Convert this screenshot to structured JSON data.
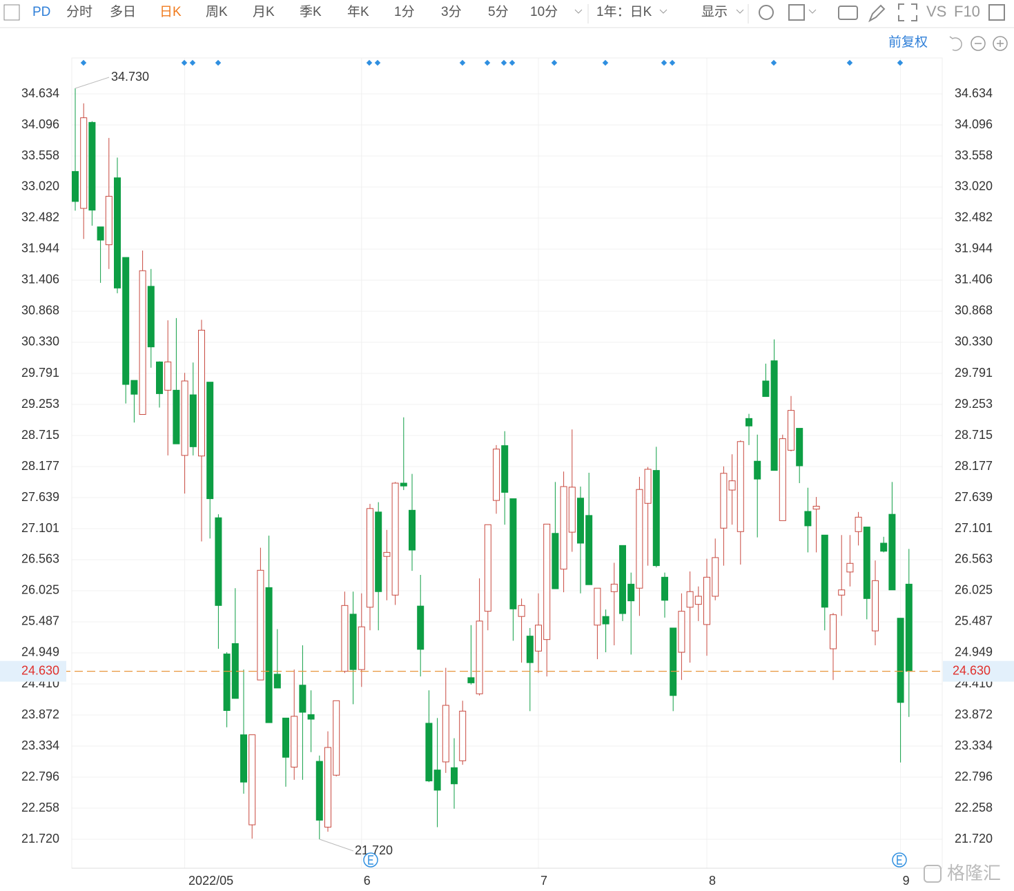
{
  "toolbar": {
    "symbol": "PD",
    "items": [
      "分时",
      "多日",
      "日K",
      "周K",
      "月K",
      "季K",
      "年K",
      "1分",
      "3分",
      "5分",
      "10分"
    ],
    "range": "1年：日K",
    "display": "显示",
    "vs": "VS",
    "f10": "F10",
    "adjust": "前复权",
    "watermark": "格隆汇"
  },
  "chart_data": {
    "type": "candlestick",
    "categories": [
      null,
      null,
      null,
      null,
      null,
      null,
      null,
      null,
      null,
      null,
      null,
      null,
      null,
      "2022/05",
      null,
      null,
      null,
      null,
      null,
      null,
      null,
      null,
      null,
      null,
      null,
      null,
      null,
      null,
      null,
      null,
      null,
      null,
      null,
      null,
      "6",
      null,
      null,
      null,
      null,
      null,
      null,
      null,
      null,
      null,
      null,
      null,
      null,
      null,
      null,
      null,
      null,
      null,
      null,
      null,
      null,
      "7",
      null,
      null,
      null,
      null,
      null,
      null,
      null,
      null,
      null,
      null,
      null,
      null,
      null,
      null,
      null,
      null,
      null,
      null,
      null,
      "8",
      null,
      null,
      null,
      null,
      null,
      null,
      null,
      null,
      null,
      null,
      null,
      null,
      null,
      null,
      null,
      null,
      null,
      null,
      null,
      null,
      null,
      null,
      "9",
      null
    ],
    "open": [
      33.29,
      32.65,
      34.14,
      32.33,
      32.02,
      33.18,
      31.8,
      29.67,
      29.08,
      31.3,
      29.99,
      29.5,
      29.5,
      28.37,
      29.42,
      28.36,
      29.64,
      27.29,
      24.93,
      25.11,
      23.53,
      21.97,
      24.48,
      26.08,
      24.58,
      23.82,
      22.97,
      24.39,
      23.88,
      23.07,
      21.93,
      22.83,
      24.63,
      25.62,
      24.66,
      25.74,
      27.39,
      26.62,
      25.95,
      27.89,
      27.42,
      25.76,
      23.73,
      22.92,
      23.06,
      22.96,
      23.08,
      24.52,
      24.24,
      25.67,
      27.59,
      28.54,
      27.62,
      25.58,
      25.24,
      24.98,
      25.18,
      27.02,
      26.4,
      27.04,
      27.63,
      27.33,
      25.43,
      25.58,
      26.01,
      26.81,
      26.14,
      26.07,
      27.54,
      28.11,
      26.26,
      25.38,
      24.96,
      25.74,
      25.79,
      25.44,
      25.93,
      27.11,
      27.77,
      27.05,
      29.01,
      28.27,
      29.66,
      30.01,
      27.24,
      28.46,
      28.84,
      27.4,
      27.44,
      26.99,
      25.02,
      25.95,
      26.35,
      27.05,
      27.13,
      25.33,
      26.85,
      27.35,
      25.55,
      26.14
    ],
    "high": [
      34.73,
      34.47,
      34.16,
      32.33,
      33.87,
      33.53,
      31.8,
      29.67,
      31.92,
      31.6,
      30.0,
      30.71,
      30.75,
      29.8,
      29.98,
      30.72,
      29.64,
      27.35,
      24.96,
      26.07,
      24.66,
      23.53,
      26.77,
      26.98,
      25.36,
      23.82,
      24.66,
      25.08,
      24.3,
      23.17,
      23.59,
      24.12,
      26.01,
      26.01,
      25.98,
      27.53,
      27.56,
      27.08,
      27.91,
      29.03,
      28.05,
      26.3,
      24.3,
      23.82,
      24.69,
      23.47,
      24.12,
      25.43,
      26.24,
      27.17,
      28.55,
      28.79,
      27.62,
      25.89,
      25.38,
      25.98,
      27.18,
      27.91,
      28.09,
      28.82,
      27.83,
      28.07,
      26.07,
      25.7,
      26.51,
      26.81,
      26.34,
      28.0,
      28.17,
      28.52,
      26.34,
      25.38,
      25.98,
      26.36,
      26.1,
      26.58,
      26.93,
      28.18,
      28.39,
      28.63,
      29.09,
      28.73,
      29.96,
      30.38,
      28.73,
      29.4,
      28.84,
      27.81,
      27.65,
      26.99,
      25.64,
      26.99,
      26.99,
      27.39,
      27.13,
      26.55,
      26.96,
      27.91,
      25.55,
      26.75
    ],
    "low": [
      32.61,
      32.12,
      32.35,
      31.36,
      31.6,
      31.18,
      29.27,
      28.94,
      29.08,
      29.89,
      29.2,
      28.37,
      28.57,
      27.71,
      28.37,
      26.88,
      26.93,
      25.02,
      23.66,
      24.16,
      22.51,
      21.73,
      24.48,
      23.74,
      24.34,
      22.63,
      22.75,
      22.75,
      23.23,
      21.72,
      21.85,
      22.81,
      24.6,
      24.06,
      24.36,
      25.34,
      25.34,
      25.86,
      25.78,
      27.77,
      26.37,
      24.54,
      22.71,
      21.93,
      22.87,
      22.25,
      23.01,
      24.4,
      24.21,
      25.34,
      27.36,
      27.17,
      25.16,
      24.78,
      23.94,
      24.6,
      24.54,
      26.06,
      26.0,
      26.7,
      25.98,
      26.13,
      24.84,
      24.96,
      25.08,
      25.5,
      24.92,
      25.59,
      26.46,
      26.43,
      25.56,
      23.94,
      24.48,
      24.78,
      25.5,
      24.9,
      25.86,
      26.46,
      27.17,
      26.48,
      28.55,
      26.95,
      29.39,
      28.11,
      27.24,
      28.44,
      27.89,
      26.69,
      26.69,
      25.34,
      24.48,
      25.59,
      26.1,
      26.81,
      25.53,
      25.08,
      26.69,
      26.04,
      23.05,
      23.84
    ],
    "close": [
      32.77,
      34.22,
      32.62,
      32.1,
      32.86,
      31.27,
      29.6,
      29.43,
      31.57,
      30.25,
      29.44,
      29.99,
      28.57,
      29.66,
      28.52,
      30.54,
      27.62,
      25.77,
      23.95,
      24.16,
      22.71,
      23.53,
      26.38,
      23.74,
      24.34,
      23.14,
      23.85,
      23.92,
      23.8,
      22.05,
      23.31,
      24.12,
      25.77,
      24.66,
      25.4,
      27.45,
      26.01,
      26.69,
      27.89,
      27.84,
      26.73,
      25.01,
      22.73,
      22.57,
      24.04,
      22.68,
      23.94,
      24.43,
      25.5,
      27.17,
      28.48,
      27.73,
      25.71,
      25.77,
      24.78,
      25.43,
      27.18,
      26.06,
      27.83,
      27.82,
      26.85,
      26.13,
      26.07,
      25.45,
      26.14,
      25.63,
      25.85,
      27.78,
      28.13,
      26.46,
      25.86,
      24.21,
      25.67,
      26.01,
      25.93,
      26.26,
      26.6,
      28.06,
      27.93,
      28.61,
      28.88,
      27.96,
      29.39,
      28.11,
      28.66,
      29.15,
      28.19,
      27.15,
      27.49,
      25.74,
      25.61,
      26.04,
      26.5,
      27.3,
      25.89,
      26.2,
      26.71,
      26.04,
      24.09,
      24.63
    ],
    "up_color": "#c8493f",
    "down_color": "#0d9e44",
    "price_line_color": "#e8963c",
    "ylim": [
      21.218,
      35.256
    ],
    "yticks": [
      {
        "value": 21.72,
        "label": "21.720"
      },
      22.258,
      22.796,
      23.334,
      23.872,
      {
        "value": 24.41,
        "label": "24.410"
      },
      24.949,
      25.487,
      26.025,
      26.563,
      27.101,
      27.639,
      28.177,
      28.715,
      29.253,
      29.791,
      {
        "value": 30.33,
        "label": "30.330"
      },
      30.868,
      31.406,
      31.944,
      32.482,
      {
        "value": 33.02,
        "label": "33.020"
      },
      33.558,
      34.096,
      34.634
    ],
    "grid": true,
    "price_line": {
      "value": 24.63,
      "label": "24.630"
    },
    "max_label": {
      "value": 34.73,
      "label": "34.730"
    },
    "min_label": {
      "value": 21.72,
      "label": "21.720"
    }
  }
}
